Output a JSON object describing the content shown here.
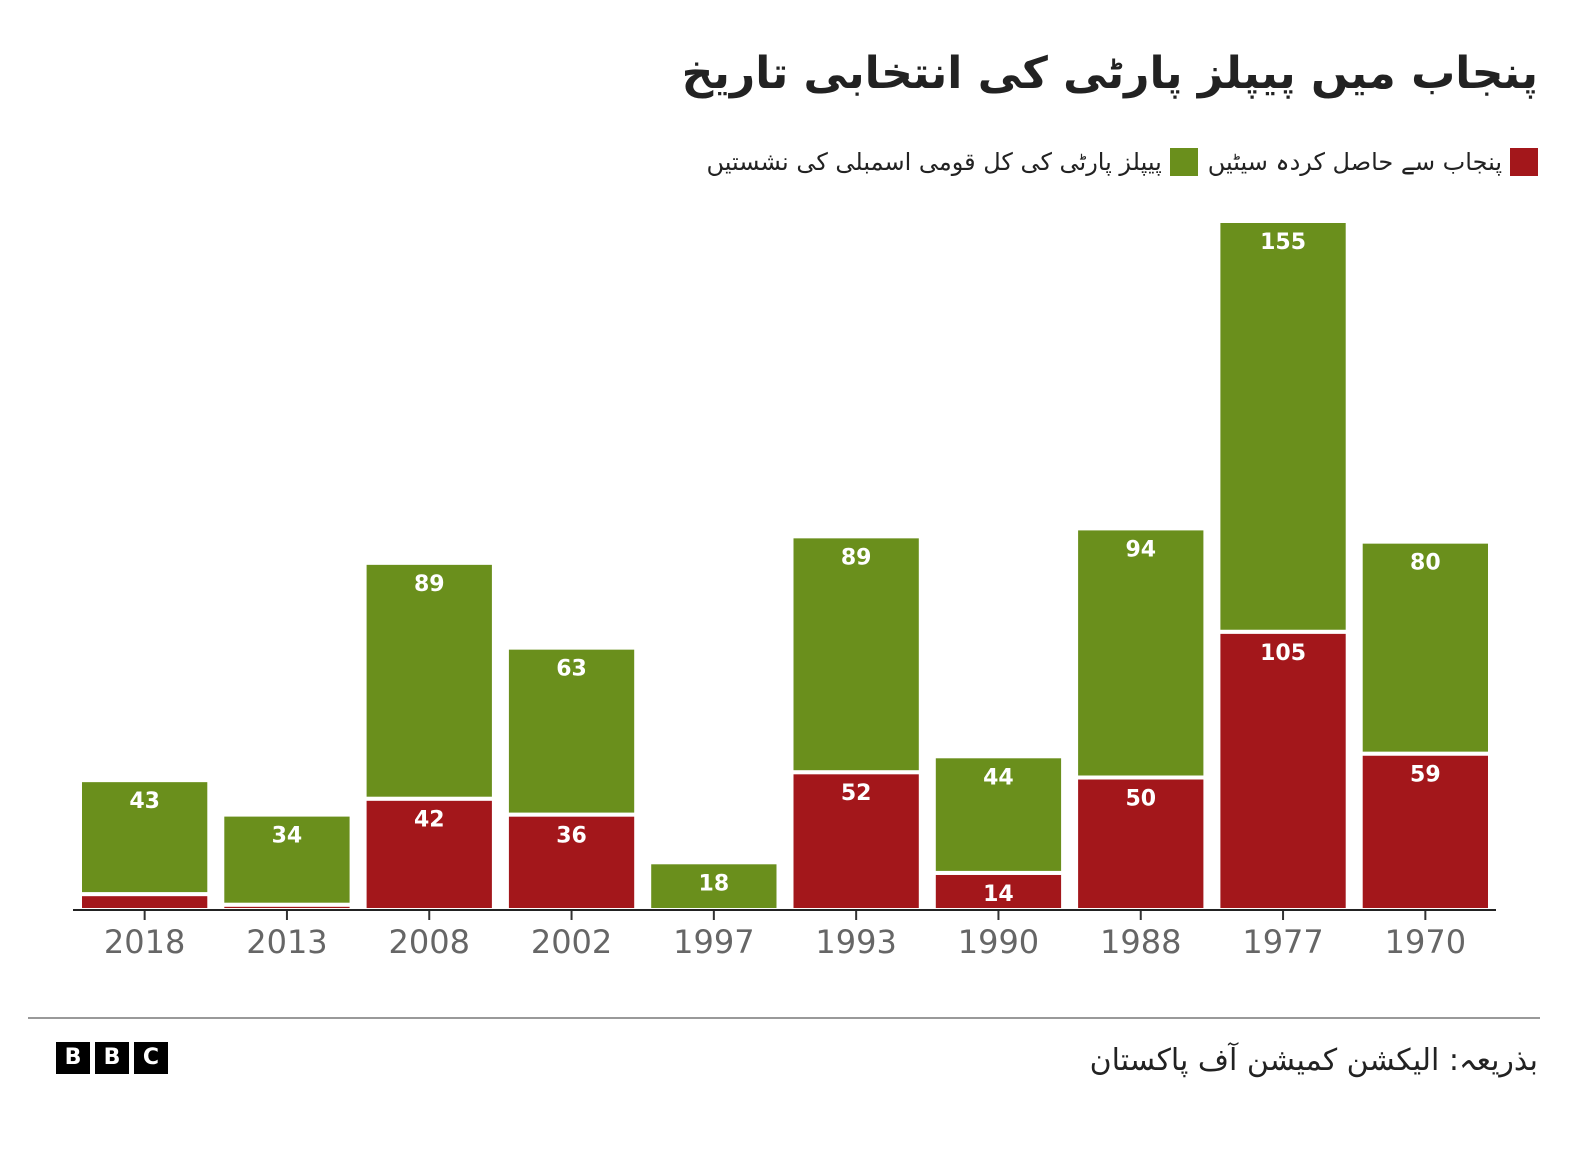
{
  "chart_data": {
    "type": "stacked-bar",
    "title": "پنجاب میں پیپلز پارٹی کی انتخابی تاریخ",
    "categories": [
      "2018",
      "2013",
      "2008",
      "2002",
      "1997",
      "1993",
      "1990",
      "1988",
      "1977",
      "1970"
    ],
    "series": [
      {
        "name": "پنجاب سے حاصل کردہ سیٹیں",
        "color": "#a3171b",
        "values": [
          6,
          2,
          42,
          36,
          0,
          52,
          14,
          50,
          105,
          59
        ]
      },
      {
        "name": "پیپلز پارٹی کی کل قومی اسمبلی کی نشستیں",
        "color": "#6a8f1c",
        "values": [
          43,
          34,
          89,
          63,
          18,
          89,
          44,
          94,
          155,
          80
        ]
      }
    ],
    "ylim": [
      0,
      260
    ],
    "source": "بذریعہ: الیکشن کمیشن آف پاکستان",
    "logo": [
      "B",
      "B",
      "C"
    ]
  }
}
